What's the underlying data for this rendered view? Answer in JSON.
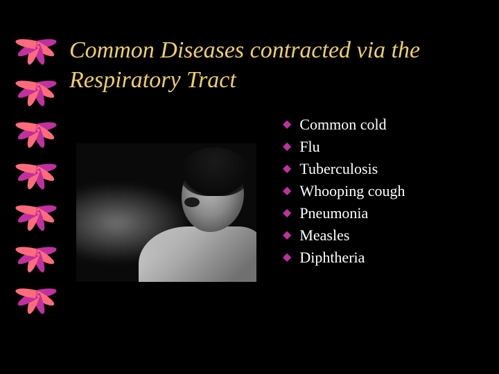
{
  "title": "Common Diseases contracted via the Respiratory Tract",
  "title_color": "#f0d060",
  "title_fontsize": 34,
  "background_color": "#000000",
  "bullet_color": "#c030a0",
  "item_text_color": "#ffffff",
  "item_fontsize": 22,
  "decor": {
    "fan_count": 7,
    "blade_count": 6,
    "colors_alt": [
      "#c030a0",
      "#ff6b7a"
    ]
  },
  "list": {
    "items": [
      {
        "label": "Common  cold"
      },
      {
        "label": "Flu"
      },
      {
        "label": "Tuberculosis"
      },
      {
        "label": "Whooping cough"
      },
      {
        "label": "Pneumonia"
      },
      {
        "label": "Measles"
      },
      {
        "label": "Diphtheria"
      }
    ]
  }
}
